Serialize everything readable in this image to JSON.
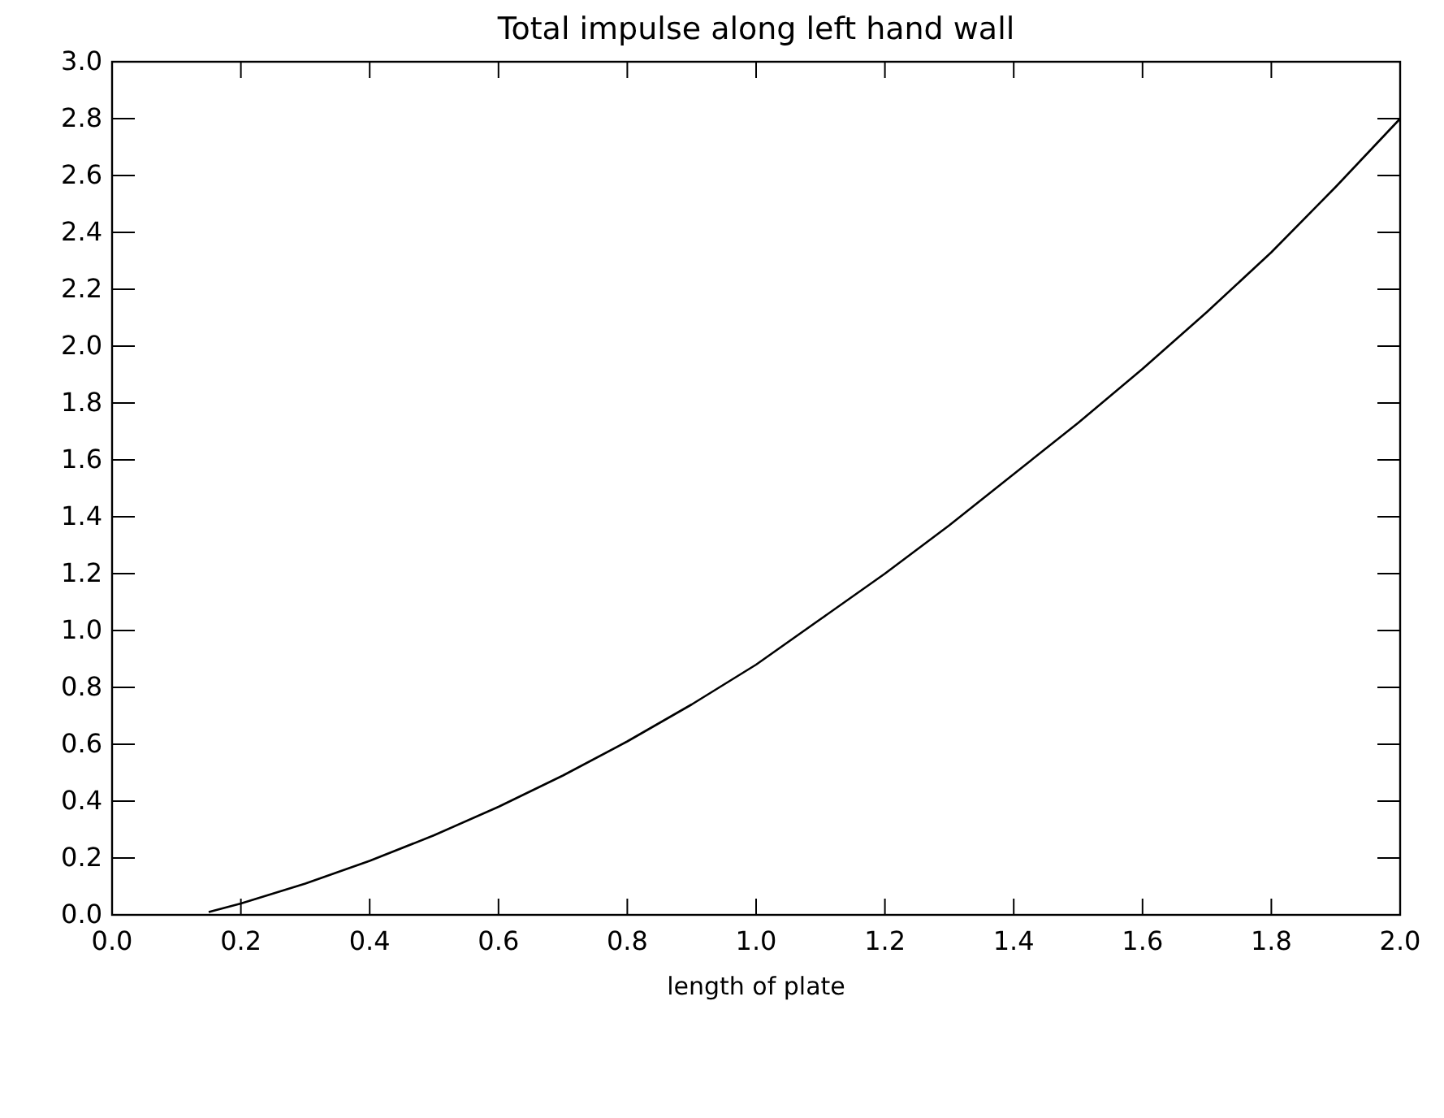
{
  "chart_data": {
    "type": "line",
    "title": "Total impulse along left hand wall",
    "xlabel": "length of plate",
    "x": [
      0.15,
      0.2,
      0.3,
      0.4,
      0.5,
      0.6,
      0.7,
      0.8,
      0.9,
      1.0,
      1.1,
      1.2,
      1.3,
      1.4,
      1.5,
      1.6,
      1.7,
      1.8,
      1.9,
      2.0
    ],
    "series": [
      {
        "color": "#000000",
        "values": [
          0.01,
          0.04,
          0.11,
          0.19,
          0.28,
          0.38,
          0.49,
          0.61,
          0.74,
          0.88,
          1.04,
          1.2,
          1.37,
          1.55,
          1.73,
          1.92,
          2.12,
          2.33,
          2.56,
          2.8
        ]
      }
    ],
    "xlim": [
      0,
      2
    ],
    "xticks": [
      {
        "value": 0,
        "label": "0.0"
      },
      0.2,
      0.4,
      0.6,
      0.8,
      {
        "value": 1,
        "label": "1.0"
      },
      1.2,
      1.4,
      1.6,
      1.8,
      {
        "value": 2,
        "label": "2.0"
      }
    ],
    "ylim": [
      0,
      3
    ],
    "yticks": [
      {
        "value": 0,
        "label": "0.0"
      },
      0.2,
      0.4,
      0.6,
      0.8,
      {
        "value": 1,
        "label": "1.0"
      },
      1.2,
      1.4,
      1.6,
      1.8,
      {
        "value": 2,
        "label": "2.0"
      },
      2.2,
      2.4,
      2.6,
      2.8,
      {
        "value": 3,
        "label": "3.0"
      }
    ],
    "grid": false,
    "marker": "none",
    "line_style": "solid"
  }
}
